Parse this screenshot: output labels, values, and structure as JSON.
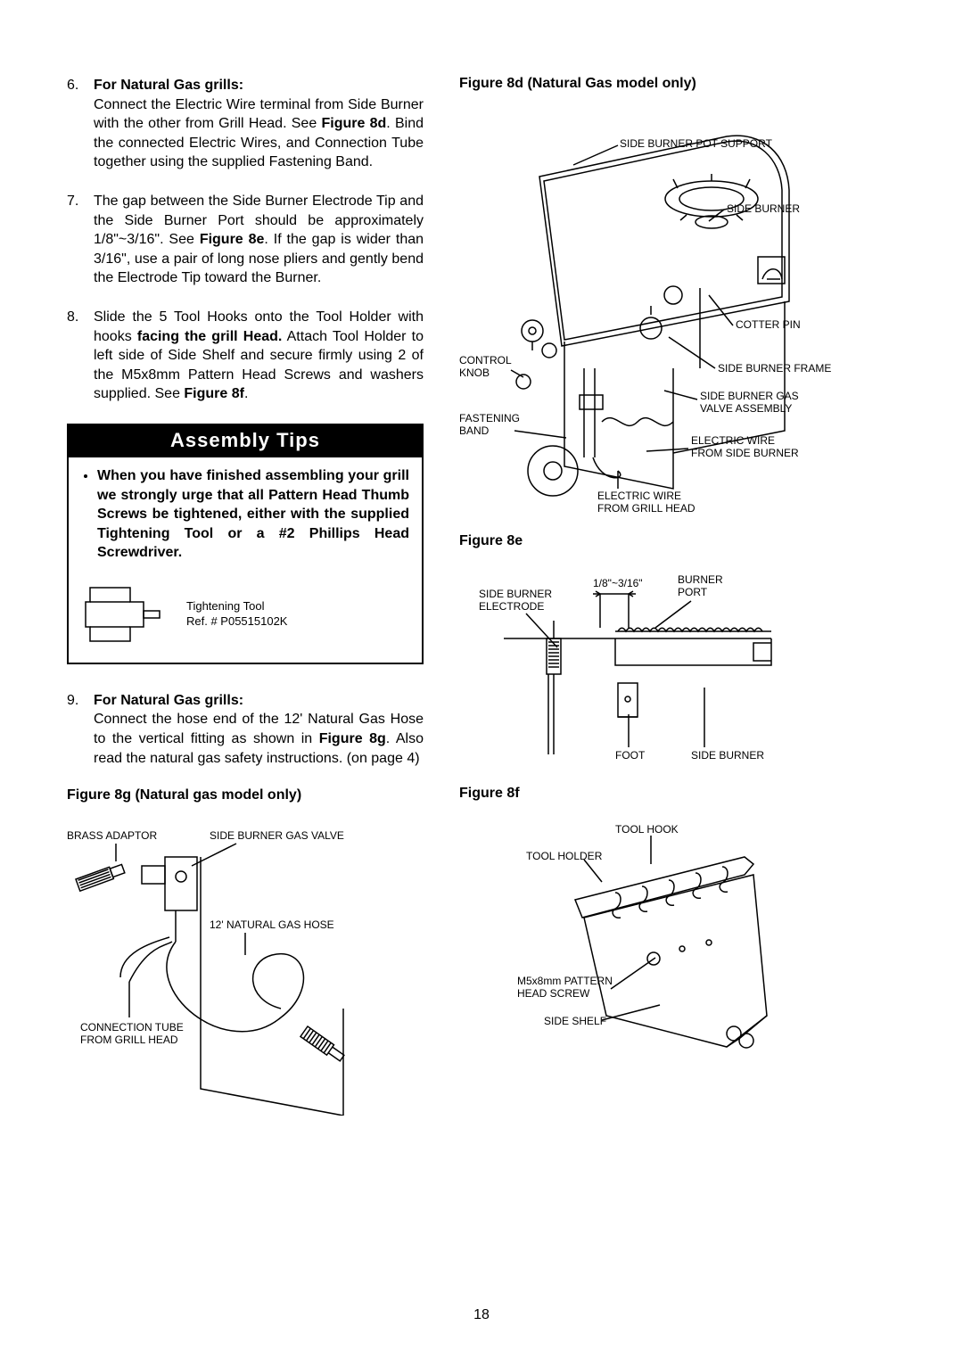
{
  "page_number": "18",
  "left": {
    "steps_a": [
      {
        "num": "6.",
        "bold_lead": "For Natural Gas grills:",
        "text": "Connect the Electric Wire terminal from Side Burner with the other from Grill Head. See <b>Figure 8d</b>. Bind the connected Electric Wires, and Connection Tube together using the supplied Fastening Band."
      },
      {
        "num": "7.",
        "text": "The gap between the Side Burner Electrode Tip and the Side Burner Port should be approximately 1/8\"~3/16\". See <b>Figure 8e</b>. If the gap is wider than 3/16\", use a pair of long nose pliers and gently bend the Electrode Tip toward the Burner."
      },
      {
        "num": "8.",
        "text": "Slide the 5 Tool Hooks onto the Tool Holder with hooks <b>facing the grill Head.</b> Attach Tool Holder to left side of Side Shelf and secure firmly using 2 of the M5x8mm Pattern Head Screws and washers supplied. See <b>Figure 8f</b>."
      }
    ],
    "tips": {
      "header": "Assembly  Tips",
      "bullets": [
        "When you have finished assembling your grill we strongly urge that all Pattern Head Thumb Screws be tightened, either with the supplied Tightening Tool or a #2 Phillips Head Screwdriver."
      ],
      "tool_label_l1": "Tightening  Tool",
      "tool_label_l2": "Ref.  #  P05515102K"
    },
    "steps_b": [
      {
        "num": "9.",
        "bold_lead": "For Natural Gas grills:",
        "text": "Connect the hose end of the 12' Natural Gas Hose to the vertical fitting as shown in <b>Figure 8g</b>. Also read the natural gas safety instructions. (on page 4)"
      }
    ],
    "fig8g": {
      "title": "Figure 8g (Natural gas model only)",
      "labels": {
        "brass_adaptor": "BRASS ADAPTOR",
        "side_burner_gas_valve": "SIDE BURNER GAS VALVE",
        "nat_gas_hose": "12' NATURAL GAS HOSE",
        "conn_tube": "CONNECTION TUBE\nFROM GRILL HEAD"
      }
    }
  },
  "right": {
    "fig8d": {
      "title": "Figure 8d (Natural Gas model only)",
      "labels": {
        "pot_support": "SIDE BURNER POT SUPPORT",
        "side_burner": "SIDE BURNER",
        "cotter_pin": "COTTER PIN",
        "control_knob": "CONTROL\nKNOB",
        "side_burner_frame": "SIDE BURNER FRAME",
        "gas_valve_assy": "SIDE BURNER GAS\nVALVE ASSEMBLY",
        "fastening_band": "FASTENING\nBAND",
        "elec_wire_side": "ELECTRIC WIRE\nFROM SIDE BURNER",
        "elec_wire_head": "ELECTRIC WIRE\nFROM GRILL HEAD"
      }
    },
    "fig8e": {
      "title": "Figure 8e",
      "labels": {
        "gap": "1/8\"~3/16\"",
        "burner_port": "BURNER\nPORT",
        "electrode": "SIDE BURNER\nELECTRODE",
        "foot": "FOOT",
        "side_burner": "SIDE BURNER"
      }
    },
    "fig8f": {
      "title": "Figure 8f",
      "labels": {
        "tool_hook": "TOOL  HOOK",
        "tool_holder": "TOOL  HOLDER",
        "screw": "M5x8mm PATTERN\nHEAD SCREW",
        "side_shelf": "SIDE  SHELF"
      }
    }
  }
}
